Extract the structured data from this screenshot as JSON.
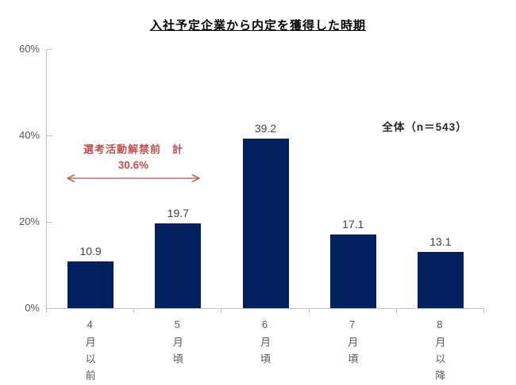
{
  "chart_data": {
    "type": "bar",
    "title": "入社予定企業から内定を獲得した時期",
    "categories": [
      "4月以前",
      "5月頃",
      "6月頃",
      "7月頃",
      "8月以降"
    ],
    "values": [
      10.9,
      19.7,
      39.2,
      17.1,
      13.1
    ],
    "xlabel": "",
    "ylabel": "",
    "ylim": [
      0,
      60
    ],
    "yticks": [
      0,
      20,
      40,
      60
    ],
    "ytick_suffix": "%",
    "grid": false,
    "legend_position": "upper-right",
    "bar_color": "#002060",
    "value_label_color": "#404040",
    "axis_color": "#BFBFBF",
    "tick_label_color": "#595959"
  },
  "legend": {
    "text": "全体（n＝543）"
  },
  "annotation": {
    "line1": "選考活動解禁前　計",
    "line2": "30.6%",
    "color": "#C0504D",
    "spans_categories": [
      "4月以前",
      "5月頃"
    ]
  }
}
